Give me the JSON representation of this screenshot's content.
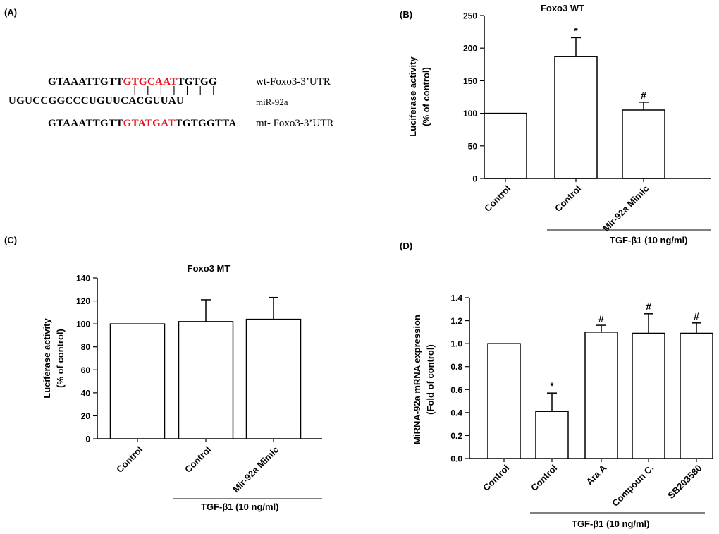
{
  "panelA": {
    "letter": "(A)",
    "wt_seq": {
      "pre": "GTAAATTGTT",
      "hl": "GTGCAAT",
      "post": "TGTGG"
    },
    "wt_label": "wt-Foxo3-3’UTR",
    "pairs": "| | | | | | |",
    "mir_seq": "UGUCCGGCCCUGUUCACGUUAU",
    "mir_label": "miR-92a",
    "mt_seq": {
      "pre": "GTAAATTGTT",
      "hl": "GTATGAT",
      "post": "TGTGGTTA"
    },
    "mt_label": "mt- Foxo3-3’UTR",
    "highlight_color": "#e8141c"
  },
  "chart_data": [
    {
      "panel": "(B)",
      "type": "bar",
      "title": "Foxo3 WT",
      "ylabel_lines": [
        "Luciferase activity",
        "(% of control)"
      ],
      "categories": [
        "Control",
        "Control",
        "Mir-92a Mimic"
      ],
      "values": [
        100,
        187,
        105
      ],
      "errors": [
        0,
        29,
        12
      ],
      "markers": [
        "",
        "*",
        "#"
      ],
      "ylim": [
        0,
        250
      ],
      "yticks": [
        0,
        50,
        100,
        150,
        200,
        250
      ],
      "group_label": "TGF-β1  (10 ng/ml)"
    },
    {
      "panel": "(C)",
      "type": "bar",
      "title": "Foxo3 MT",
      "ylabel_lines": [
        "Luciferase activity",
        "(% of control)"
      ],
      "categories": [
        "Control",
        "Control",
        "Mir-92a Mimic"
      ],
      "values": [
        100,
        102,
        104
      ],
      "errors": [
        0,
        19,
        19
      ],
      "markers": [
        "",
        "",
        ""
      ],
      "ylim": [
        0,
        140
      ],
      "yticks": [
        0,
        20,
        40,
        60,
        80,
        100,
        120,
        140
      ],
      "group_label": "TGF-β1  (10 ng/ml)"
    },
    {
      "panel": "(D)",
      "type": "bar",
      "title": "",
      "ylabel_lines": [
        "MiRNA-92a mRNA expression",
        "(Fold of control)"
      ],
      "categories": [
        "Control",
        "Control",
        "Ara A",
        "Compoun C.",
        "SB203580"
      ],
      "values": [
        1.0,
        0.41,
        1.1,
        1.09,
        1.09
      ],
      "errors": [
        0,
        0.16,
        0.06,
        0.17,
        0.09
      ],
      "markers": [
        "",
        "*",
        "#",
        "#",
        "#"
      ],
      "ylim": [
        0,
        1.4
      ],
      "yticks": [
        "0.0",
        "0.2",
        "0.4",
        "0.6",
        "0.8",
        "1.0",
        "1.2",
        "1.4"
      ],
      "group_label": "TGF-β1 (10 ng/ml)"
    }
  ]
}
